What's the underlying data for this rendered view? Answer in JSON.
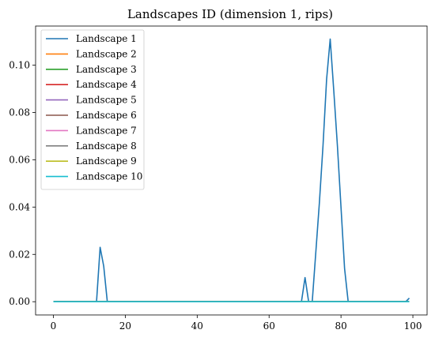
{
  "chart_data": {
    "type": "line",
    "title": "Landscapes ID (dimension 1, rips)",
    "xlabel": "",
    "ylabel": "",
    "xlim": [
      -4.95,
      103.95
    ],
    "ylim": [
      -0.0056,
      0.1165
    ],
    "xticks": [
      0,
      20,
      40,
      60,
      80,
      100
    ],
    "xtick_labels": [
      "0",
      "20",
      "40",
      "60",
      "80",
      "100"
    ],
    "yticks": [
      0,
      0.02,
      0.04,
      0.06,
      0.08,
      0.1
    ],
    "ytick_labels": [
      "0.00",
      "0.02",
      "0.04",
      "0.06",
      "0.08",
      "0.10"
    ],
    "grid": false,
    "legend_position": "top-left",
    "x_count": 100,
    "series": [
      {
        "name": "Landscape 1",
        "color": "#1f77b4",
        "points": [
          [
            0,
            0
          ],
          [
            12,
            0
          ],
          [
            13,
            0.023
          ],
          [
            14,
            0.015
          ],
          [
            15,
            0
          ],
          [
            69,
            0
          ],
          [
            70,
            0.0102
          ],
          [
            71,
            0
          ],
          [
            72,
            0
          ],
          [
            73,
            0.021
          ],
          [
            74,
            0.042
          ],
          [
            75,
            0.066
          ],
          [
            76,
            0.094
          ],
          [
            77,
            0.111
          ],
          [
            78,
            0.089
          ],
          [
            79,
            0.066
          ],
          [
            80,
            0.04
          ],
          [
            81,
            0.014
          ],
          [
            82,
            0
          ],
          [
            98,
            0
          ],
          [
            99,
            0.0015
          ]
        ]
      },
      {
        "name": "Landscape 2",
        "color": "#ff7f0e",
        "points": [
          [
            0,
            0
          ],
          [
            99,
            0
          ]
        ]
      },
      {
        "name": "Landscape 3",
        "color": "#2ca02c",
        "points": [
          [
            0,
            0
          ],
          [
            99,
            0
          ]
        ]
      },
      {
        "name": "Landscape 4",
        "color": "#d62728",
        "points": [
          [
            0,
            0
          ],
          [
            99,
            0
          ]
        ]
      },
      {
        "name": "Landscape 5",
        "color": "#9467bd",
        "points": [
          [
            0,
            0
          ],
          [
            99,
            0
          ]
        ]
      },
      {
        "name": "Landscape 6",
        "color": "#8c564b",
        "points": [
          [
            0,
            0
          ],
          [
            99,
            0
          ]
        ]
      },
      {
        "name": "Landscape 7",
        "color": "#e377c2",
        "points": [
          [
            0,
            0
          ],
          [
            99,
            0
          ]
        ]
      },
      {
        "name": "Landscape 8",
        "color": "#7f7f7f",
        "points": [
          [
            0,
            0
          ],
          [
            99,
            0
          ]
        ]
      },
      {
        "name": "Landscape 9",
        "color": "#bcbd22",
        "points": [
          [
            0,
            0
          ],
          [
            99,
            0
          ]
        ]
      },
      {
        "name": "Landscape 10",
        "color": "#17becf",
        "points": [
          [
            0,
            0
          ],
          [
            99,
            0
          ]
        ]
      }
    ]
  }
}
